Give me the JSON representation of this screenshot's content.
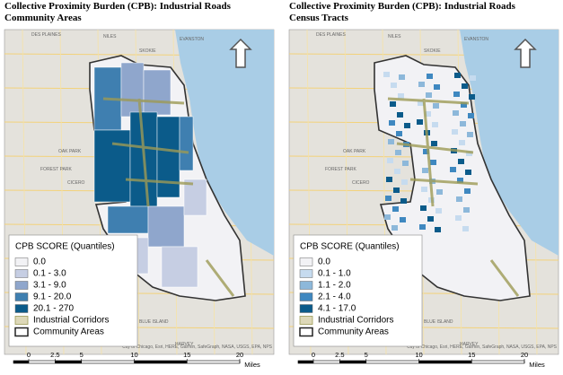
{
  "panels": [
    {
      "title": [
        "Collective Proximity Burden (CPB): Industrial Roads",
        "Community Areas"
      ],
      "legend": {
        "title": "CPB SCORE (Quantiles)",
        "items": [
          {
            "label": "0.0",
            "color": "#f2f2f5"
          },
          {
            "label": "0.1 - 3.0",
            "color": "#c6cee3"
          },
          {
            "label": "3.1 - 9.0",
            "color": "#8fa6cc"
          },
          {
            "label": "9.1 - 20.0",
            "color": "#3f7fb0"
          },
          {
            "label": "20.1 - 270",
            "color": "#0b5b8a"
          }
        ],
        "extra": [
          "Industrial Corridors",
          "Community Areas"
        ]
      },
      "map_labels": [
        "DES PLAINES",
        "NILES",
        "SKOKIE",
        "EVANSTON",
        "OAK PARK",
        "CICERO",
        "BLUE ISLAND",
        "HARVEY",
        "FOREST PARK"
      ],
      "attribution": "City of Chicago, Esri, HERE, Garmin, SafeGraph, NASA, USGS, EPA, NPS",
      "scale": {
        "ticks": [
          0,
          2.5,
          5,
          10,
          15,
          20
        ],
        "unit": "Miles"
      }
    },
    {
      "title": [
        "Collective Proximity Burden (CPB): Industrial Roads",
        "Census Tracts"
      ],
      "legend": {
        "title": "CPB SCORE (Quantiles)",
        "items": [
          {
            "label": "0.0",
            "color": "#f2f2f5"
          },
          {
            "label": "0.1 - 1.0",
            "color": "#c6dbef"
          },
          {
            "label": "1.1 - 2.0",
            "color": "#8db8da"
          },
          {
            "label": "2.1 - 4.0",
            "color": "#3f88c0"
          },
          {
            "label": "4.1 - 17.0",
            "color": "#0b5b8a"
          }
        ],
        "extra": [
          "Industrial Corridors",
          "Community Areas"
        ]
      },
      "map_labels": [
        "DES PLAINES",
        "NILES",
        "SKOKIE",
        "EVANSTON",
        "OAK PARK",
        "CICERO",
        "BLUE ISLAND",
        "HARVEY",
        "FOREST PARK"
      ],
      "attribution": "City of Chicago, Esri, HERE, Garmin, SafeGraph, NASA, USGS, EPA, NPS",
      "scale": {
        "ticks": [
          0,
          2.5,
          5,
          10,
          15,
          20
        ],
        "unit": "Miles"
      }
    }
  ]
}
